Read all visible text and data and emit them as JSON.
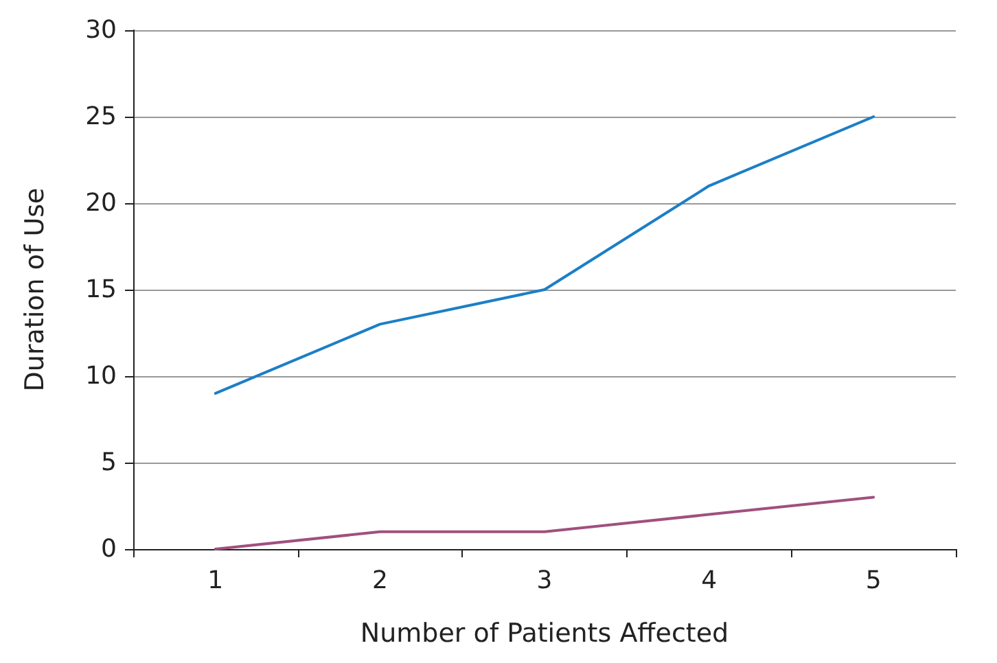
{
  "chart_data": {
    "type": "line",
    "xlabel": "Number of Patients Affected",
    "ylabel": "Duration of Use",
    "categories": [
      "1",
      "2",
      "3",
      "4",
      "5"
    ],
    "series": [
      {
        "color": "#1b7fc6",
        "values": [
          9,
          13,
          15,
          21,
          25
        ]
      },
      {
        "color": "#a0507e",
        "values": [
          0,
          1,
          1,
          2,
          3
        ]
      }
    ],
    "ylim": [
      0,
      30
    ],
    "yticks": [
      0,
      5,
      10,
      15,
      20,
      25,
      30
    ],
    "grid": "y",
    "marker": "none",
    "line_style": "solid"
  }
}
